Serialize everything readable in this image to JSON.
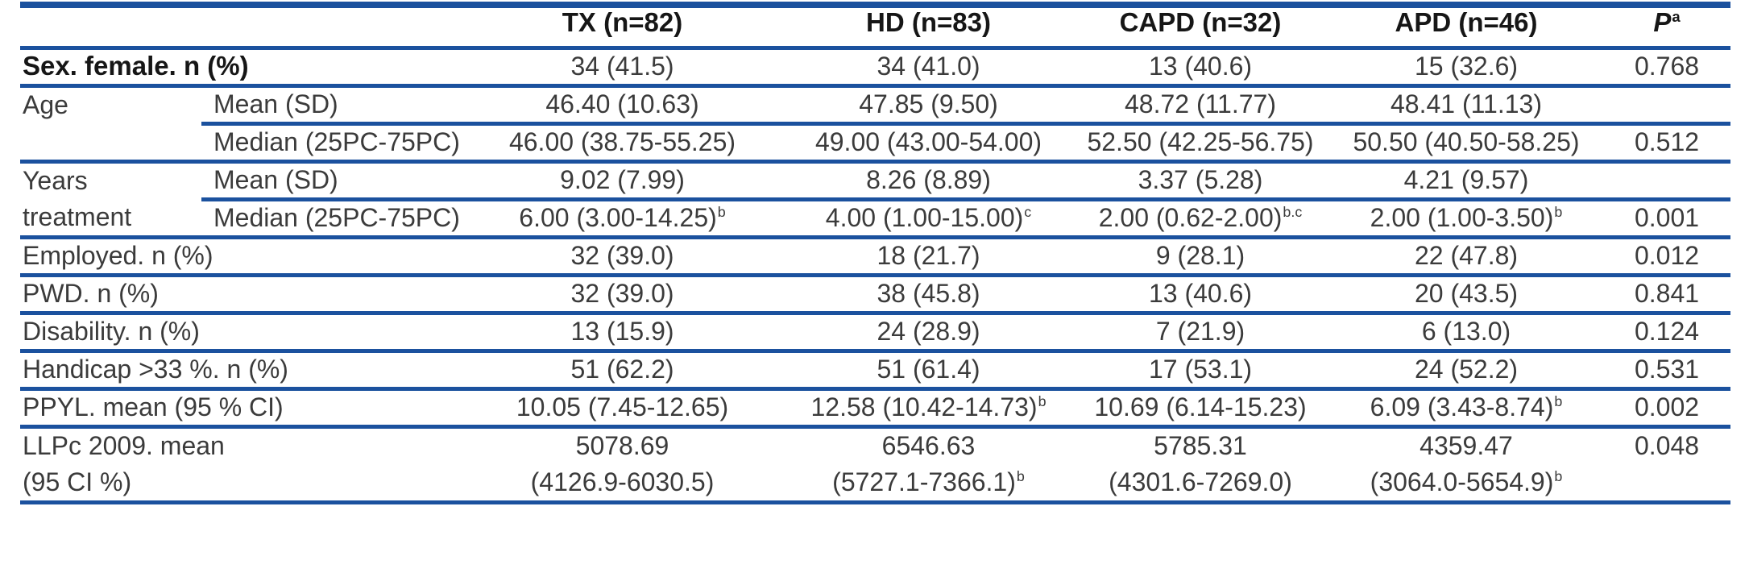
{
  "accent_color": "#1b519e",
  "table": {
    "header": {
      "tx": "TX (n=82)",
      "hd": "HD (n=83)",
      "capd": "CAPD (n=32)",
      "apd": "APD (n=46)",
      "p_label": "P",
      "p_sup": "a"
    },
    "rows": [
      {
        "label": "Sex. female. n (%)",
        "cells": [
          {
            "text": "34 (41.5)"
          },
          {
            "text": "34 (41.0)"
          },
          {
            "text": "13 (40.6)"
          },
          {
            "text": "15 (32.6)"
          }
        ],
        "p": "0.768"
      },
      {
        "label1": "Age",
        "label2": "Mean (SD)",
        "cells": [
          {
            "text": "46.40 (10.63)"
          },
          {
            "text": "47.85 (9.50)"
          },
          {
            "text": "48.72 (11.77)"
          },
          {
            "text": "48.41 (11.13)"
          }
        ],
        "p": ""
      },
      {
        "label1": "",
        "label2": "Median (25PC-75PC)",
        "cells": [
          {
            "text": "46.00 (38.75-55.25)"
          },
          {
            "text": "49.00 (43.00-54.00)"
          },
          {
            "text": "52.50 (42.25-56.75)"
          },
          {
            "text": "50.50 (40.50-58.25)"
          }
        ],
        "p": "0.512"
      },
      {
        "label1": "Years",
        "label2": "Mean (SD)",
        "cells": [
          {
            "text": "9.02 (7.99)"
          },
          {
            "text": "8.26 (8.89)"
          },
          {
            "text": "3.37 (5.28)"
          },
          {
            "text": "4.21 (9.57)"
          }
        ],
        "p": ""
      },
      {
        "label1": "treatment",
        "label2": "Median (25PC-75PC)",
        "cells": [
          {
            "text": "6.00 (3.00-14.25)",
            "sup": "b"
          },
          {
            "text": "4.00 (1.00-15.00)",
            "sup": "c"
          },
          {
            "text": "2.00 (0.62-2.00)",
            "sup": "b.c"
          },
          {
            "text": "2.00 (1.00-3.50)",
            "sup": "b"
          }
        ],
        "p": "0.001"
      },
      {
        "label": "Employed. n (%)",
        "cells": [
          {
            "text": "32 (39.0)"
          },
          {
            "text": "18 (21.7)"
          },
          {
            "text": "9 (28.1)"
          },
          {
            "text": "22 (47.8)"
          }
        ],
        "p": "0.012"
      },
      {
        "label": "PWD. n (%)",
        "cells": [
          {
            "text": "32 (39.0)"
          },
          {
            "text": "38 (45.8)"
          },
          {
            "text": "13 (40.6)"
          },
          {
            "text": "20 (43.5)"
          }
        ],
        "p": "0.841"
      },
      {
        "label": "Disability. n (%)",
        "cells": [
          {
            "text": "13 (15.9)"
          },
          {
            "text": "24 (28.9)"
          },
          {
            "text": "7 (21.9)"
          },
          {
            "text": "6 (13.0)"
          }
        ],
        "p": "0.124"
      },
      {
        "label": "Handicap >33 %. n (%)",
        "cells": [
          {
            "text": "51 (62.2)"
          },
          {
            "text": "51 (61.4)"
          },
          {
            "text": "17 (53.1)"
          },
          {
            "text": "24 (52.2)"
          }
        ],
        "p": "0.531"
      },
      {
        "label": "PPYL. mean (95 % CI)",
        "cells": [
          {
            "text": "10.05 (7.45-12.65)"
          },
          {
            "text": "12.58 (10.42-14.73)",
            "sup": "b"
          },
          {
            "text": "10.69 (6.14-15.23)"
          },
          {
            "text": "6.09 (3.43-8.74)",
            "sup": "b"
          }
        ],
        "p": "0.002"
      },
      {
        "label": "LLPc 2009. mean",
        "cells": [
          {
            "text": "5078.69"
          },
          {
            "text": "6546.63"
          },
          {
            "text": "5785.31"
          },
          {
            "text": "4359.47"
          }
        ],
        "p": "0.048"
      },
      {
        "label": "(95 CI %)",
        "cells": [
          {
            "text": "(4126.9-6030.5)"
          },
          {
            "text": "(5727.1-7366.1)",
            "sup": "b"
          },
          {
            "text": "(4301.6-7269.0)"
          },
          {
            "text": "(3064.0-5654.9)",
            "sup": "b"
          }
        ],
        "p": ""
      }
    ]
  }
}
